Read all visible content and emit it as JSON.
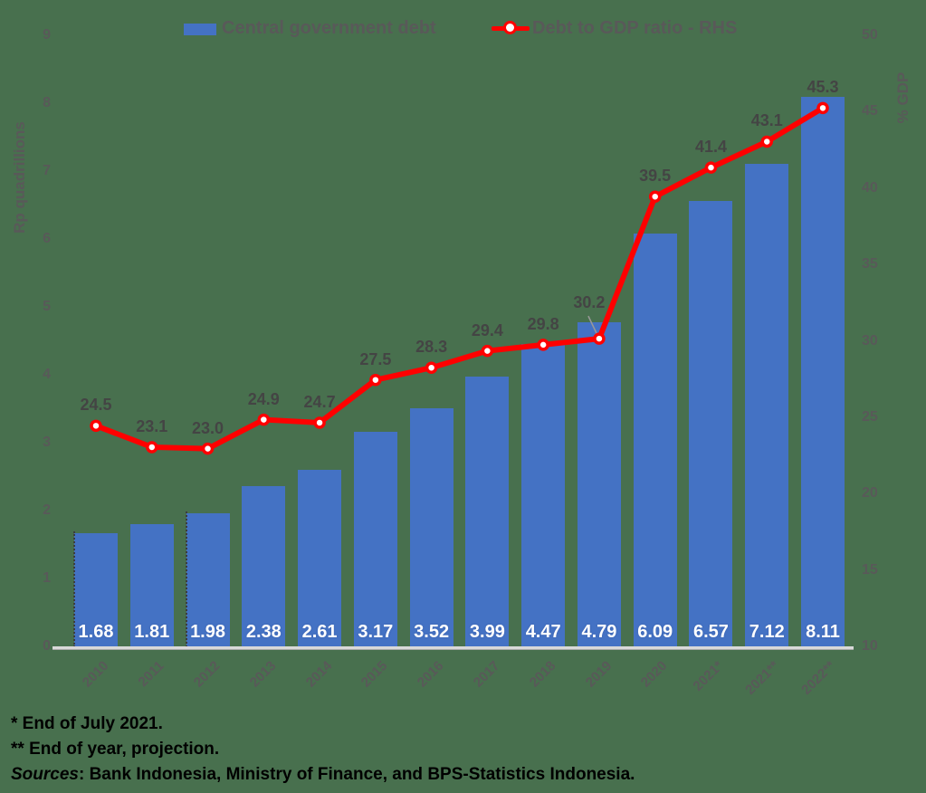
{
  "legend": {
    "bar_label": "Central government debt",
    "line_label": "Debt to GDP ratio - RHS"
  },
  "footnotes": {
    "line1": "* End of July 2021.",
    "line2": "** End of year, projection.",
    "sources_label": "Sources",
    "sources_rest": ": Bank Indonesia, Ministry of Finance, and BPS-Statistics Indonesia."
  },
  "colors": {
    "background": "#48704E",
    "bar": "#4472C4",
    "line": "#FF0000",
    "marker_fill": "#FFFFFF",
    "text_gray": "#595959",
    "bar_label": "#FFFFFF",
    "axis_line": "#D9D9D9",
    "leader_line": "#999999",
    "footnote": "#000000"
  },
  "chart_data": {
    "type": "bar+line",
    "title": "",
    "categories": [
      "2010",
      "2011",
      "2012",
      "2013",
      "2014",
      "2015",
      "2016",
      "2017",
      "2018",
      "2019",
      "2020",
      "2021*",
      "2021**",
      "2022**"
    ],
    "series": [
      {
        "name": "Central government debt",
        "type": "bar",
        "axis": "left",
        "unit": "Rp quadrillions",
        "color": "#4472C4",
        "values": [
          1.68,
          1.81,
          1.98,
          2.38,
          2.61,
          3.17,
          3.52,
          3.99,
          4.47,
          4.79,
          6.09,
          6.57,
          7.12,
          8.11
        ]
      },
      {
        "name": "Debt to GDP ratio - RHS",
        "type": "line",
        "axis": "right",
        "unit": "% GDP",
        "color": "#FF0000",
        "values": [
          24.5,
          23.1,
          23.0,
          24.9,
          24.7,
          27.5,
          28.3,
          29.4,
          29.8,
          30.2,
          39.5,
          41.4,
          43.1,
          45.3
        ]
      }
    ],
    "left_axis": {
      "title": "Rp quadrillions",
      "min": 0,
      "max": 9,
      "tick_step": 1,
      "ticks": [
        "0",
        "1",
        "2",
        "3",
        "4",
        "5",
        "6",
        "7",
        "8",
        "9"
      ]
    },
    "right_axis": {
      "title": "% GDP",
      "min": 10,
      "max": 50,
      "tick_step": 5,
      "ticks": [
        "10",
        "15",
        "20",
        "25",
        "30",
        "35",
        "40",
        "45",
        "50"
      ]
    },
    "legend_position": "top",
    "gridlines": false
  }
}
